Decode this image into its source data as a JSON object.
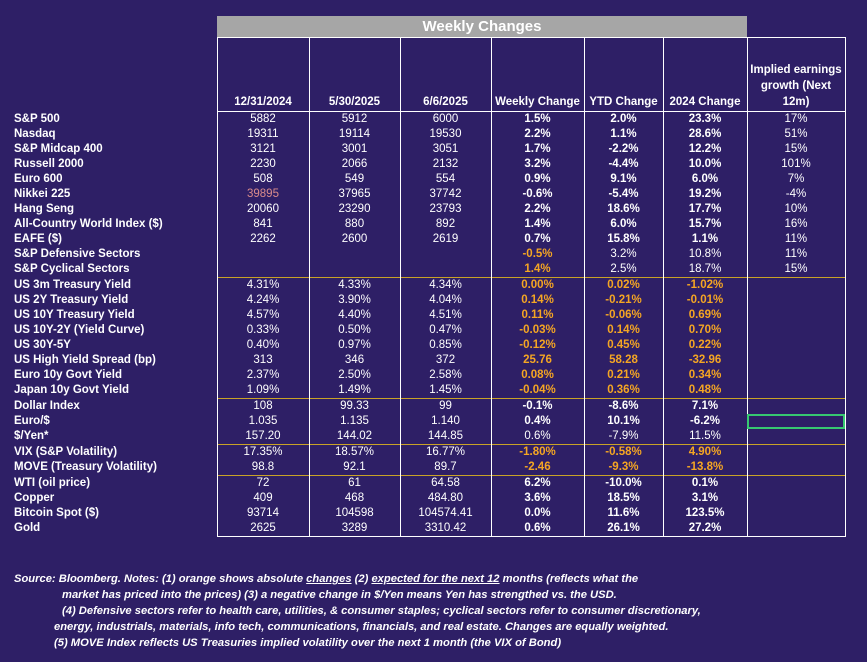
{
  "banner": "Weekly Changes",
  "headers": [
    "12/31/2024",
    "5/30/2025",
    "6/6/2025",
    "Weekly Change",
    "YTD Change",
    "2024 Change",
    "Implied earnings growth (Next 12m)"
  ],
  "rows": [
    {
      "label": "S&P 500",
      "c": [
        "5882",
        "5912",
        "6000",
        "1.5%",
        "2.0%",
        "23.3%",
        "17%"
      ]
    },
    {
      "label": "Nasdaq",
      "c": [
        "19311",
        "19114",
        "19530",
        "2.2%",
        "1.1%",
        "28.6%",
        "51%"
      ]
    },
    {
      "label": "S&P Midcap 400",
      "c": [
        "3121",
        "3001",
        "3051",
        "1.7%",
        "-2.2%",
        "12.2%",
        "15%"
      ]
    },
    {
      "label": "Russell 2000",
      "c": [
        "2230",
        "2066",
        "2132",
        "3.2%",
        "-4.4%",
        "10.0%",
        "101%"
      ]
    },
    {
      "label": "Euro 600",
      "c": [
        "508",
        "549",
        "554",
        "0.9%",
        "9.1%",
        "6.0%",
        "7%"
      ]
    },
    {
      "label": "Nikkei 225",
      "c": [
        "39895",
        "37965",
        "37742",
        "-0.6%",
        "-5.4%",
        "19.2%",
        "-4%"
      ]
    },
    {
      "label": "Hang Seng",
      "c": [
        "20060",
        "23290",
        "23793",
        "2.2%",
        "18.6%",
        "17.7%",
        "10%"
      ]
    },
    {
      "label": "All-Country World Index ($)",
      "c": [
        "841",
        "880",
        "892",
        "1.4%",
        "6.0%",
        "15.7%",
        "16%"
      ]
    },
    {
      "label": "EAFE ($)",
      "c": [
        "2262",
        "2600",
        "2619",
        "0.7%",
        "15.8%",
        "1.1%",
        "11%"
      ]
    },
    {
      "label": "S&P Defensive Sectors",
      "c": [
        "",
        "",
        "",
        "-0.5%",
        "3.2%",
        "10.8%",
        "11%"
      ]
    },
    {
      "label": "S&P Cyclical Sectors",
      "c": [
        "",
        "",
        "",
        "1.4%",
        "2.5%",
        "18.7%",
        "15%"
      ]
    },
    {
      "label": "US 3m Treasury Yield",
      "c": [
        "4.31%",
        "4.33%",
        "4.34%",
        "0.00%",
        "0.02%",
        "-1.02%",
        ""
      ]
    },
    {
      "label": "US 2Y Treasury Yield",
      "c": [
        "4.24%",
        "3.90%",
        "4.04%",
        "0.14%",
        "-0.21%",
        "-0.01%",
        ""
      ]
    },
    {
      "label": "US 10Y Treasury Yield",
      "c": [
        "4.57%",
        "4.40%",
        "4.51%",
        "0.11%",
        "-0.06%",
        "0.69%",
        ""
      ]
    },
    {
      "label": "US 10Y-2Y (Yield Curve)",
      "c": [
        "0.33%",
        "0.50%",
        "0.47%",
        "-0.03%",
        "0.14%",
        "0.70%",
        ""
      ]
    },
    {
      "label": "US 30Y-5Y",
      "c": [
        "0.40%",
        "0.97%",
        "0.85%",
        "-0.12%",
        "0.45%",
        "0.22%",
        ""
      ]
    },
    {
      "label": "US High Yield Spread (bp)",
      "c": [
        "313",
        "346",
        "372",
        "25.76",
        "58.28",
        "-32.96",
        ""
      ]
    },
    {
      "label": "Euro 10y Govt Yield",
      "c": [
        "2.37%",
        "2.50%",
        "2.58%",
        "0.08%",
        "0.21%",
        "0.34%",
        ""
      ]
    },
    {
      "label": "Japan 10y Govt Yield",
      "c": [
        "1.09%",
        "1.49%",
        "1.45%",
        "-0.04%",
        "0.36%",
        "0.48%",
        ""
      ]
    },
    {
      "label": "Dollar Index",
      "c": [
        "108",
        "99.33",
        "99",
        "-0.1%",
        "-8.6%",
        "7.1%",
        ""
      ]
    },
    {
      "label": "Euro/$",
      "c": [
        "1.035",
        "1.135",
        "1.140",
        "0.4%",
        "10.1%",
        "-6.2%",
        ""
      ]
    },
    {
      "label": "$/Yen*",
      "c": [
        "157.20",
        "144.02",
        "144.85",
        "0.6%",
        "-7.9%",
        "11.5%",
        ""
      ]
    },
    {
      "label": "VIX (S&P Volatility)",
      "c": [
        "17.35%",
        "18.57%",
        "16.77%",
        "-1.80%",
        "-0.58%",
        "4.90%",
        ""
      ]
    },
    {
      "label": "MOVE (Treasury Volatility)",
      "c": [
        "98.8",
        "92.1",
        "89.7",
        "-2.46",
        "-9.3%",
        "-13.8%",
        ""
      ]
    },
    {
      "label": "WTI (oil price)",
      "c": [
        "72",
        "61",
        "64.58",
        "6.2%",
        "-10.0%",
        "0.1%",
        ""
      ]
    },
    {
      "label": "Copper",
      "c": [
        "409",
        "468",
        "484.80",
        "3.6%",
        "18.5%",
        "3.1%",
        ""
      ]
    },
    {
      "label": "Bitcoin Spot ($)",
      "c": [
        "93714",
        "104598",
        "104574.41",
        "0.0%",
        "11.6%",
        "123.5%",
        ""
      ]
    },
    {
      "label": "Gold",
      "c": [
        "2625",
        "3289",
        "3310.42",
        "0.6%",
        "26.1%",
        "27.2%",
        ""
      ]
    }
  ],
  "notes": {
    "l1_a": "Source: Bloomberg. Notes: (1) orange shows absolute ",
    "l1_b": "changes",
    "l1_c": " (2) ",
    "l1_d": "expected for the next 12",
    "l1_e": " months (reflects what the",
    "l2": "market has priced into the prices) (3) a negative change in $/Yen means Yen has strengthed vs. the USD.",
    "l3": "(4) Defensive sectors refer to health care, utilities, & consumer staples; cyclical sectors refer to consumer discretionary,",
    "l4": "energy, industrials, materials, info tech, communications, financials, and real estate. Changes are equally weighted.",
    "l5": "(5) MOVE Index reflects US Treasuries implied volatility over the next 1 month (the VIX of Bond)"
  },
  "colors": {
    "background": "#2e1f66",
    "orange": "#f5a623",
    "gold_border": "#c9a227",
    "selection": "#37c871"
  }
}
